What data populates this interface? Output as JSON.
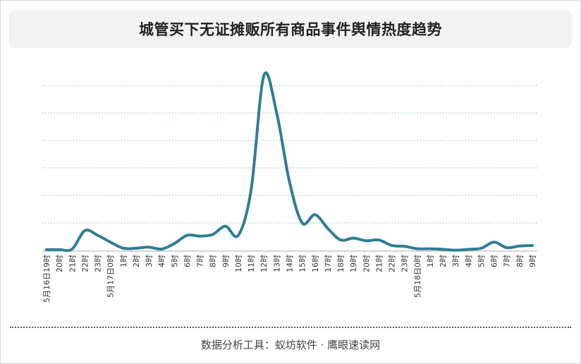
{
  "title": "城管买下无证摊贩所有商品事件舆情热度趋势",
  "footer": "数据分析工具：蚁坊软件 · 鹰眼速读网",
  "colors": {
    "line": "#2e7d96",
    "grid": "#8fb3c4",
    "axis": "#aaaaaa",
    "tick_text": "#333333"
  },
  "chart_data": {
    "type": "line",
    "title": "城管买下无证摊贩所有商品事件舆情热度趋势",
    "xlabel": "",
    "ylabel": "",
    "grid": true,
    "legend": "none",
    "ylim": [
      0,
      6.4
    ],
    "categories": [
      "5月16日19时",
      "20时",
      "21时",
      "22时",
      "23时",
      "5月17日0时",
      "1时",
      "2时",
      "3时",
      "4时",
      "5时",
      "6时",
      "7时",
      "8时",
      "9时",
      "10时",
      "11时",
      "12时",
      "13时",
      "14时",
      "15时",
      "16时",
      "17时",
      "18时",
      "19时",
      "20时",
      "21时",
      "22时",
      "23时",
      "5月18日0时",
      "1时",
      "2时",
      "3时",
      "4时",
      "5时",
      "6时",
      "7时",
      "8时",
      "9时"
    ],
    "series": [
      {
        "values": [
          0.03,
          0.03,
          0.05,
          0.72,
          0.55,
          0.3,
          0.08,
          0.08,
          0.12,
          0.05,
          0.25,
          0.55,
          0.52,
          0.58,
          0.88,
          0.55,
          2.2,
          6.35,
          5.0,
          2.5,
          1.0,
          1.3,
          0.8,
          0.38,
          0.45,
          0.35,
          0.38,
          0.18,
          0.15,
          0.06,
          0.06,
          0.04,
          0.01,
          0.04,
          0.08,
          0.3,
          0.1,
          0.16,
          0.18
        ]
      }
    ]
  }
}
